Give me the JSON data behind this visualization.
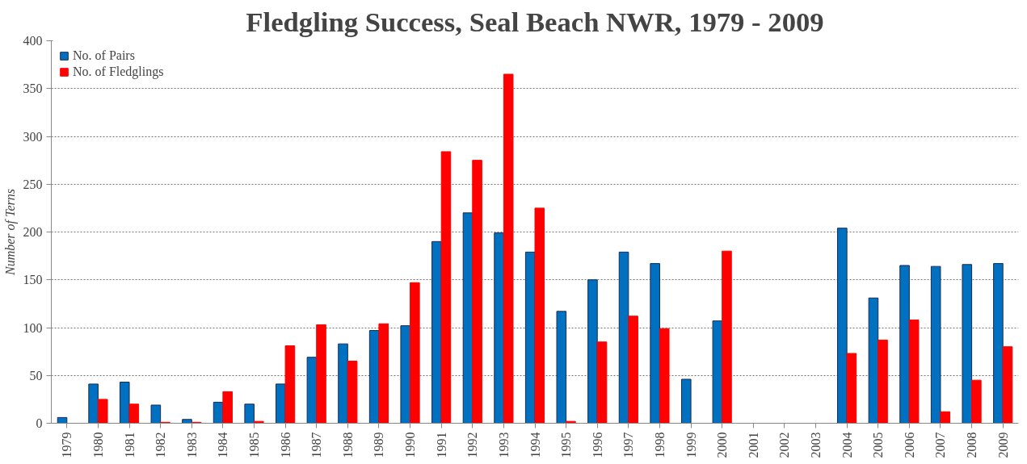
{
  "chart_data": {
    "type": "bar",
    "title": "Fledgling Success, Seal Beach NWR, 1979 - 2009",
    "ylabel": "Number of Terns",
    "categories": [
      "1979",
      "1980",
      "1981",
      "1982",
      "1983",
      "1984",
      "1985",
      "1986",
      "1987",
      "1988",
      "1989",
      "1990",
      "1991",
      "1992",
      "1993",
      "1994",
      "1995",
      "1996",
      "1997",
      "1998",
      "1999",
      "2000",
      "2001",
      "2002",
      "2003",
      "2004",
      "2005",
      "2006",
      "2007",
      "2008",
      "2009"
    ],
    "series": [
      {
        "name": "No. of Pairs",
        "color": "#0070c0",
        "values": [
          6,
          41,
          43,
          19,
          4,
          22,
          20,
          41,
          69,
          83,
          97,
          102,
          190,
          220,
          199,
          179,
          117,
          150,
          179,
          167,
          46,
          107,
          null,
          null,
          null,
          204,
          131,
          165,
          164,
          166,
          167
        ]
      },
      {
        "name": "No. of Fledglings",
        "color": "#ff0000",
        "values": [
          0,
          25,
          20,
          1,
          1,
          33,
          2,
          81,
          103,
          65,
          104,
          147,
          284,
          275,
          365,
          225,
          2,
          85,
          112,
          99,
          0,
          180,
          null,
          null,
          null,
          73,
          87,
          108,
          12,
          45,
          80
        ]
      }
    ],
    "ylim": [
      0,
      400
    ],
    "yticks": [
      0,
      50,
      100,
      150,
      200,
      250,
      300,
      350,
      400
    ],
    "grid": "y",
    "legend": "top left"
  }
}
